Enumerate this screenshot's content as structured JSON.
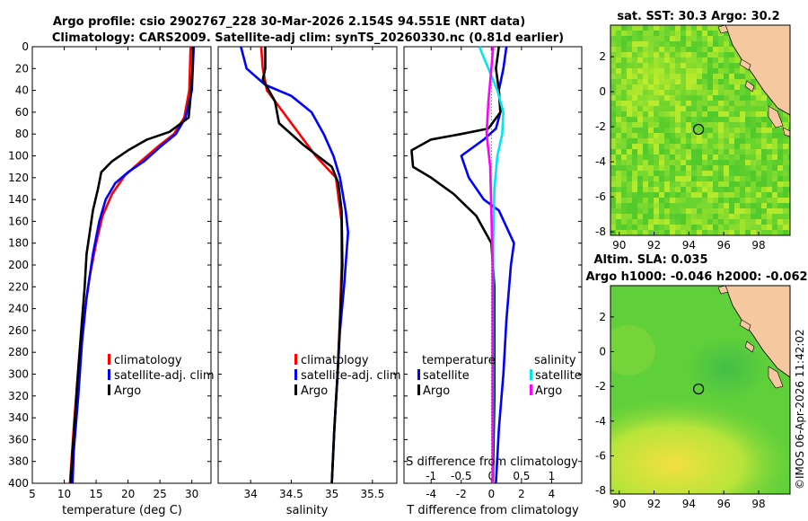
{
  "header": {
    "line1": "Argo profile: csio 2902767_228 30-Mar-2026 2.154S 94.551E (NRT data)",
    "line2": "Climatology: CARS2009. Satellite-adj clim: synTS_20260330.nc (0.81d earlier)"
  },
  "colors": {
    "climatology": "#ff0000",
    "satellite": "#0000ff",
    "argo": "#000000",
    "sat_salinity": "#00e5ee",
    "argo_salinity": "#ff00ff"
  },
  "chart_data": [
    {
      "type": "line",
      "id": "temperature",
      "xlabel": "temperature (deg C)",
      "xlim": [
        5,
        33
      ],
      "ylim": [
        0,
        400
      ],
      "xticks": [
        "5",
        "10",
        "15",
        "20",
        "25",
        "30"
      ],
      "xtick_values": [
        5,
        10,
        15,
        20,
        25,
        30
      ],
      "yticks": [
        "0",
        "20",
        "40",
        "60",
        "80",
        "100",
        "120",
        "140",
        "160",
        "180",
        "200",
        "220",
        "240",
        "260",
        "280",
        "300",
        "320",
        "340",
        "360",
        "380",
        "400"
      ],
      "ytick_values": [
        0,
        20,
        40,
        60,
        80,
        100,
        120,
        140,
        160,
        180,
        200,
        220,
        240,
        260,
        280,
        300,
        320,
        340,
        360,
        380,
        400
      ],
      "legend": [
        "climatology",
        "satellite-adj. clim",
        "Argo"
      ],
      "series": [
        {
          "name": "climatology",
          "color": "#ff0000",
          "points": [
            [
              29.8,
              0
            ],
            [
              29.6,
              40
            ],
            [
              28.8,
              65
            ],
            [
              27.2,
              80
            ],
            [
              25,
              90
            ],
            [
              22,
              105
            ],
            [
              19.5,
              118
            ],
            [
              17.5,
              135
            ],
            [
              16,
              155
            ],
            [
              15,
              180
            ],
            [
              14,
              210
            ],
            [
              13,
              250
            ],
            [
              12.3,
              290
            ],
            [
              11.6,
              340
            ],
            [
              10.9,
              400
            ]
          ]
        },
        {
          "name": "satellite-adj. clim",
          "color": "#0000ff",
          "points": [
            [
              30.3,
              0
            ],
            [
              30,
              40
            ],
            [
              29,
              65
            ],
            [
              27.5,
              80
            ],
            [
              25,
              92
            ],
            [
              22.5,
              105
            ],
            [
              20,
              115
            ],
            [
              18,
              125
            ],
            [
              16.5,
              140
            ],
            [
              15.5,
              160
            ],
            [
              14.5,
              190
            ],
            [
              13.5,
              230
            ],
            [
              12.8,
              270
            ],
            [
              12.2,
              320
            ],
            [
              11.5,
              370
            ],
            [
              11.3,
              400
            ]
          ]
        },
        {
          "name": "Argo",
          "color": "#000000",
          "points": [
            [
              30.2,
              0
            ],
            [
              30.1,
              20
            ],
            [
              29.9,
              40
            ],
            [
              29.5,
              65
            ],
            [
              26.5,
              78
            ],
            [
              23,
              85
            ],
            [
              20,
              95
            ],
            [
              17.5,
              105
            ],
            [
              15.8,
              115
            ],
            [
              15.3,
              130
            ],
            [
              14.5,
              150
            ],
            [
              14,
              170
            ],
            [
              13.5,
              190
            ],
            [
              13.2,
              220
            ],
            [
              12.8,
              250
            ],
            [
              12.4,
              280
            ],
            [
              12,
              310
            ],
            [
              11.7,
              340
            ],
            [
              11.3,
              370
            ],
            [
              11,
              400
            ]
          ]
        }
      ]
    },
    {
      "type": "line",
      "id": "salinity",
      "xlabel": "salinity",
      "xlim": [
        33.6,
        35.8
      ],
      "ylim": [
        0,
        400
      ],
      "xticks": [
        "34",
        "34.5",
        "35",
        "35.5"
      ],
      "xtick_values": [
        34,
        34.5,
        35,
        35.5
      ],
      "legend": [
        "climatology",
        "satellite-adj. clim",
        "Argo"
      ],
      "series": [
        {
          "name": "climatology",
          "color": "#ff0000",
          "points": [
            [
              34.13,
              0
            ],
            [
              34.15,
              20
            ],
            [
              34.2,
              40
            ],
            [
              34.4,
              60
            ],
            [
              34.6,
              80
            ],
            [
              34.8,
              100
            ],
            [
              35.05,
              120
            ],
            [
              35.12,
              160
            ],
            [
              35.12,
              200
            ],
            [
              35.1,
              250
            ],
            [
              35.07,
              300
            ],
            [
              35.03,
              350
            ],
            [
              35,
              400
            ]
          ]
        },
        {
          "name": "satellite-adj. clim",
          "color": "#0000ff",
          "points": [
            [
              33.88,
              0
            ],
            [
              33.95,
              20
            ],
            [
              34.18,
              35
            ],
            [
              34.5,
              45
            ],
            [
              34.75,
              60
            ],
            [
              34.9,
              80
            ],
            [
              35.02,
              100
            ],
            [
              35.1,
              120
            ],
            [
              35.17,
              150
            ],
            [
              35.2,
              170
            ],
            [
              35.15,
              220
            ],
            [
              35.1,
              260
            ],
            [
              35.07,
              300
            ],
            [
              35.03,
              350
            ],
            [
              35,
              400
            ]
          ]
        },
        {
          "name": "Argo",
          "color": "#000000",
          "points": [
            [
              34.18,
              0
            ],
            [
              34.18,
              20
            ],
            [
              34.15,
              30
            ],
            [
              34.3,
              50
            ],
            [
              34.35,
              70
            ],
            [
              34.65,
              90
            ],
            [
              35,
              110
            ],
            [
              35.08,
              125
            ],
            [
              35.12,
              150
            ],
            [
              35.13,
              200
            ],
            [
              35.1,
              250
            ],
            [
              35.07,
              300
            ],
            [
              35.03,
              350
            ],
            [
              35,
              400
            ]
          ]
        }
      ]
    },
    {
      "type": "line",
      "id": "difference",
      "xlabel": "T difference from climatology",
      "secondary_xlabel": "S difference from climatology",
      "xlim": [
        -5.8,
        6
      ],
      "secondary_xlim": [
        -1.45,
        1.5
      ],
      "ylim": [
        0,
        400
      ],
      "xticks": [
        "-4",
        "-2",
        "0",
        "2",
        "4"
      ],
      "xtick_values": [
        -4,
        -2,
        0,
        2,
        4
      ],
      "secondary_xticks": [
        "-1",
        "-0.5",
        "0",
        "0.5",
        "1"
      ],
      "secondary_xtick_values": [
        -1,
        -0.5,
        0,
        0.5,
        1
      ],
      "legend_temperature_title": "temperature",
      "legend_salinity_title": "salinity",
      "legend_temperature": [
        "satellite",
        "Argo"
      ],
      "legend_salinity": [
        "satellite",
        "Argo"
      ],
      "series": [
        {
          "name": "T satellite",
          "color": "#0000ff",
          "axis": "T",
          "points": [
            [
              1,
              0
            ],
            [
              0.8,
              20
            ],
            [
              0.5,
              40
            ],
            [
              0.6,
              60
            ],
            [
              0.3,
              75
            ],
            [
              -0.5,
              85
            ],
            [
              -2,
              100
            ],
            [
              -1.5,
              120
            ],
            [
              -0.5,
              140
            ],
            [
              0.5,
              150
            ],
            [
              1.5,
              180
            ],
            [
              1.3,
              200
            ],
            [
              1,
              250
            ],
            [
              0.8,
              300
            ],
            [
              0.5,
              350
            ],
            [
              0.3,
              400
            ]
          ]
        },
        {
          "name": "T Argo",
          "color": "#000000",
          "axis": "T",
          "points": [
            [
              0.5,
              0
            ],
            [
              0.3,
              20
            ],
            [
              0.5,
              40
            ],
            [
              0.6,
              60
            ],
            [
              -0.2,
              75
            ],
            [
              -2,
              80
            ],
            [
              -4,
              85
            ],
            [
              -5.3,
              95
            ],
            [
              -5.2,
              110
            ],
            [
              -4,
              120
            ],
            [
              -2.5,
              135
            ],
            [
              -1,
              155
            ],
            [
              0,
              180
            ],
            [
              0.2,
              220
            ],
            [
              0.2,
              280
            ],
            [
              0.2,
              320
            ],
            [
              0.1,
              400
            ]
          ]
        },
        {
          "name": "S satellite",
          "color": "#00e5ee",
          "axis": "S",
          "points": [
            [
              -0.2,
              0
            ],
            [
              -0.05,
              20
            ],
            [
              0.1,
              40
            ],
            [
              0.2,
              60
            ],
            [
              0.18,
              80
            ],
            [
              0.1,
              100
            ],
            [
              0.05,
              130
            ],
            [
              0.03,
              180
            ],
            [
              0.03,
              250
            ],
            [
              0.03,
              320
            ],
            [
              0.02,
              400
            ]
          ]
        },
        {
          "name": "S Argo",
          "color": "#ff00ff",
          "axis": "S",
          "points": [
            [
              0.03,
              0
            ],
            [
              0,
              20
            ],
            [
              -0.05,
              50
            ],
            [
              -0.08,
              80
            ],
            [
              -0.02,
              110
            ],
            [
              0,
              150
            ],
            [
              0.02,
              200
            ],
            [
              0.02,
              260
            ],
            [
              0.02,
              320
            ],
            [
              0.02,
              400
            ]
          ]
        }
      ]
    },
    {
      "type": "heatmap",
      "id": "sst_map",
      "title": "sat. SST: 30.3 Argo: 30.2",
      "xlim": [
        89.5,
        99.8
      ],
      "ylim": [
        -8.2,
        3.8
      ],
      "xticks": [
        "90",
        "92",
        "94",
        "96",
        "98"
      ],
      "xtick_values": [
        90,
        92,
        94,
        96,
        98
      ],
      "yticks": [
        "2",
        "0",
        "-2",
        "-4",
        "-6",
        "-8"
      ],
      "ytick_values": [
        2,
        0,
        -2,
        -4,
        -6,
        -8
      ],
      "argo_position": [
        94.55,
        -2.15
      ]
    },
    {
      "type": "heatmap",
      "id": "sla_map",
      "title": "Altim. SLA: 0.035",
      "subtitle": "Argo h1000: -0.046 h2000: -0.062",
      "xlim": [
        89.5,
        99.8
      ],
      "ylim": [
        -8.2,
        3.8
      ],
      "xticks": [
        "90",
        "92",
        "94",
        "96",
        "98"
      ],
      "xtick_values": [
        90,
        92,
        94,
        96,
        98
      ],
      "yticks": [
        "2",
        "0",
        "-2",
        "-4",
        "-6",
        "-8"
      ],
      "ytick_values": [
        2,
        0,
        -2,
        -4,
        -6,
        -8
      ],
      "argo_position": [
        94.55,
        -2.15
      ]
    }
  ],
  "watermark": "©IMOS 06-Apr-2026 11:42:02"
}
